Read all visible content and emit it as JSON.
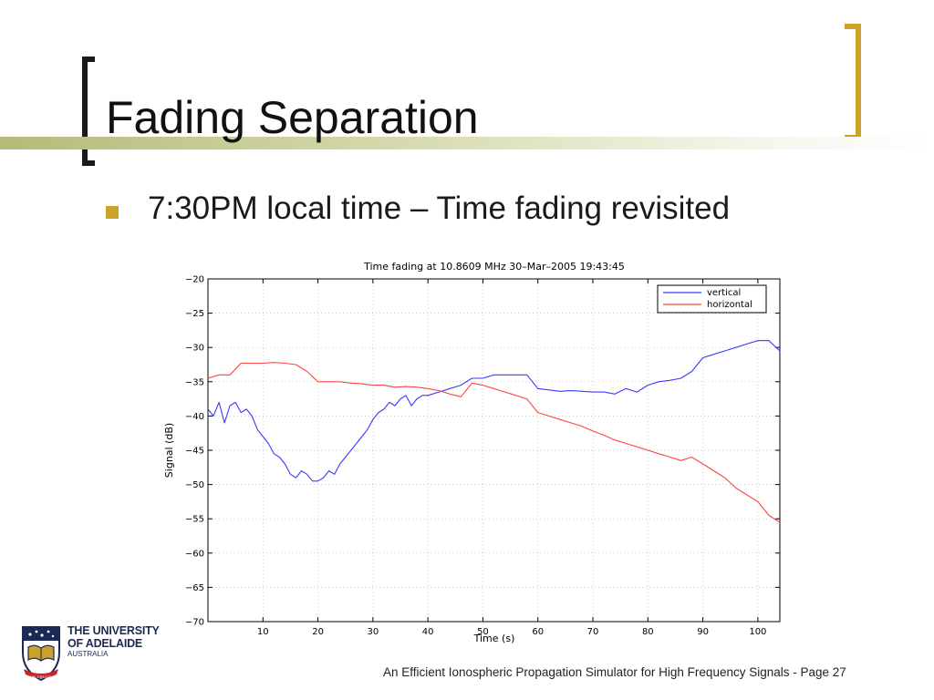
{
  "slide": {
    "title": "Fading Separation",
    "bullet": "7:30PM local time – Time fading revisited",
    "footer": "An Efficient Ionospheric Propagation Simulator for High Frequency Signals - Page 27",
    "logo": {
      "line1": "THE UNIVERSITY",
      "line2": "OF ADELAIDE",
      "line3": "AUSTRALIA",
      "motto": "SUB CRUCE LUMEN"
    },
    "colors": {
      "accent": "#c9a227",
      "title_bar": "#b5ba7a"
    }
  },
  "chart_data": {
    "type": "line",
    "title": "Time fading at 10.8609 MHz 30–Mar–2005 19:43:45",
    "xlabel": "Time (s)",
    "ylabel": "Signal (dB)",
    "xlim": [
      0,
      104
    ],
    "ylim": [
      -70,
      -20
    ],
    "xticks": [
      10,
      20,
      30,
      40,
      50,
      60,
      70,
      80,
      90,
      100
    ],
    "yticks": [
      -20,
      -25,
      -30,
      -35,
      -40,
      -45,
      -50,
      -55,
      -60,
      -65,
      -70
    ],
    "grid": true,
    "legend_position": "top-right",
    "series": [
      {
        "name": "vertical",
        "color": "#3a3aff",
        "x": [
          0,
          1,
          2,
          3,
          4,
          5,
          6,
          7,
          8,
          9,
          10,
          11,
          12,
          13,
          14,
          15,
          16,
          17,
          18,
          19,
          20,
          21,
          22,
          23,
          24,
          25,
          26,
          27,
          28,
          29,
          30,
          31,
          32,
          33,
          34,
          35,
          36,
          37,
          38,
          39,
          40,
          42,
          44,
          46,
          48,
          50,
          52,
          54,
          56,
          58,
          60,
          62,
          64,
          66,
          68,
          70,
          72,
          74,
          76,
          78,
          80,
          82,
          84,
          86,
          88,
          90,
          92,
          94,
          96,
          98,
          100,
          102,
          104
        ],
        "y": [
          -39,
          -40,
          -38,
          -41,
          -38.5,
          -38,
          -39.5,
          -39,
          -40,
          -42,
          -43,
          -44,
          -45.5,
          -46,
          -47,
          -48.5,
          -49,
          -48,
          -48.5,
          -49.5,
          -49.5,
          -49,
          -48,
          -48.5,
          -47,
          -46,
          -45,
          -44,
          -43,
          -42,
          -40.5,
          -39.5,
          -39,
          -38,
          -38.5,
          -37.5,
          -37,
          -38.5,
          -37.5,
          -37,
          -37,
          -36.5,
          -36,
          -35.5,
          -34.5,
          -34.5,
          -34,
          -34,
          -34,
          -34,
          -36,
          -36.2,
          -36.4,
          -36.3,
          -36.4,
          -36.5,
          -36.5,
          -36.8,
          -36,
          -36.5,
          -35.5,
          -35,
          -34.8,
          -34.5,
          -33.5,
          -31.5,
          -31,
          -30.5,
          -30,
          -29.5,
          -29,
          -29,
          -30.5
        ]
      },
      {
        "name": "horizontal",
        "color": "#ff4444",
        "x": [
          0,
          2,
          4,
          6,
          8,
          10,
          12,
          14,
          16,
          18,
          20,
          22,
          24,
          26,
          28,
          30,
          32,
          34,
          36,
          38,
          40,
          42,
          44,
          46,
          48,
          50,
          52,
          54,
          56,
          58,
          60,
          62,
          64,
          66,
          68,
          70,
          72,
          74,
          76,
          78,
          80,
          82,
          84,
          86,
          88,
          90,
          92,
          94,
          96,
          98,
          100,
          102,
          104
        ],
        "y": [
          -34.5,
          -34,
          -34,
          -32.3,
          -32.3,
          -32.3,
          -32.2,
          -32.3,
          -32.5,
          -33.5,
          -35,
          -35,
          -35,
          -35.2,
          -35.3,
          -35.5,
          -35.5,
          -35.8,
          -35.7,
          -35.8,
          -36,
          -36.3,
          -36.8,
          -37.2,
          -35.2,
          -35.5,
          -36,
          -36.5,
          -37,
          -37.5,
          -39.5,
          -40,
          -40.5,
          -41,
          -41.5,
          -42.2,
          -42.8,
          -43.5,
          -44,
          -44.5,
          -45,
          -45.5,
          -46,
          -46.5,
          -46,
          -47,
          -48,
          -49,
          -50.5,
          -51.5,
          -52.5,
          -54.5,
          -55.5
        ]
      }
    ]
  }
}
